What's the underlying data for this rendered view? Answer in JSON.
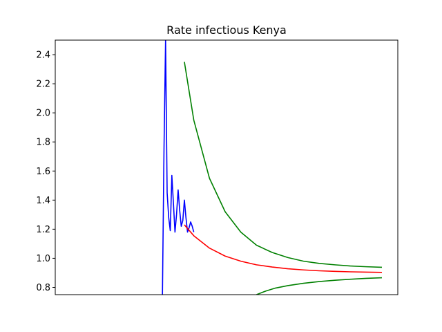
{
  "chart_data": {
    "type": "line",
    "title": "Rate infectious Kenya",
    "xlabel": "",
    "ylabel": "",
    "ylim": [
      0.75,
      2.5
    ],
    "xlim": [
      0,
      100
    ],
    "yticks": [
      0.8,
      1.0,
      1.2,
      1.4,
      1.6,
      1.8,
      2.0,
      2.2,
      2.4
    ],
    "ytick_labels": [
      "0.8",
      "1.0",
      "1.2",
      "1.4",
      "1.6",
      "1.8",
      "2.0",
      "2.2",
      "2.4"
    ],
    "xticks_visible": false,
    "grid": false,
    "legend": "none",
    "series": [
      {
        "color": "#0000ff",
        "x": [
          30.0,
          30.5,
          31.0,
          31.5,
          32.0,
          32.5,
          33.0,
          33.5,
          34.0,
          34.5,
          35.0,
          35.5,
          36.0,
          36.5,
          37.0,
          37.5,
          38.0,
          38.5,
          39.0,
          39.5,
          40.0
        ],
        "y": [
          0.75,
          1.75,
          2.5,
          1.45,
          1.28,
          1.19,
          1.57,
          1.38,
          1.18,
          1.3,
          1.47,
          1.33,
          1.22,
          1.26,
          1.4,
          1.28,
          1.18,
          1.21,
          1.25,
          1.22,
          1.18
        ]
      },
      {
        "color": "#ff0000",
        "x": [
          37,
          40,
          45,
          50,
          55,
          60,
          65,
          70,
          75,
          80,
          85,
          90,
          95,
          100
        ],
        "y": [
          1.23,
          1.155,
          1.07,
          1.015,
          0.98,
          0.955,
          0.94,
          0.928,
          0.92,
          0.914,
          0.91,
          0.907,
          0.905,
          0.903
        ]
      },
      {
        "color": "#008000",
        "x": [
          37,
          40,
          45,
          50,
          55,
          60,
          65,
          70,
          75,
          80,
          85,
          90,
          95,
          100
        ],
        "y": [
          2.35,
          1.95,
          1.55,
          1.32,
          1.18,
          1.09,
          1.04,
          1.005,
          0.98,
          0.965,
          0.955,
          0.947,
          0.942,
          0.938
        ]
      },
      {
        "color": "#008000",
        "x": [
          60,
          63,
          66,
          70,
          75,
          80,
          85,
          90,
          95,
          100
        ],
        "y": [
          0.75,
          0.775,
          0.795,
          0.812,
          0.828,
          0.84,
          0.849,
          0.856,
          0.862,
          0.866
        ]
      }
    ]
  }
}
